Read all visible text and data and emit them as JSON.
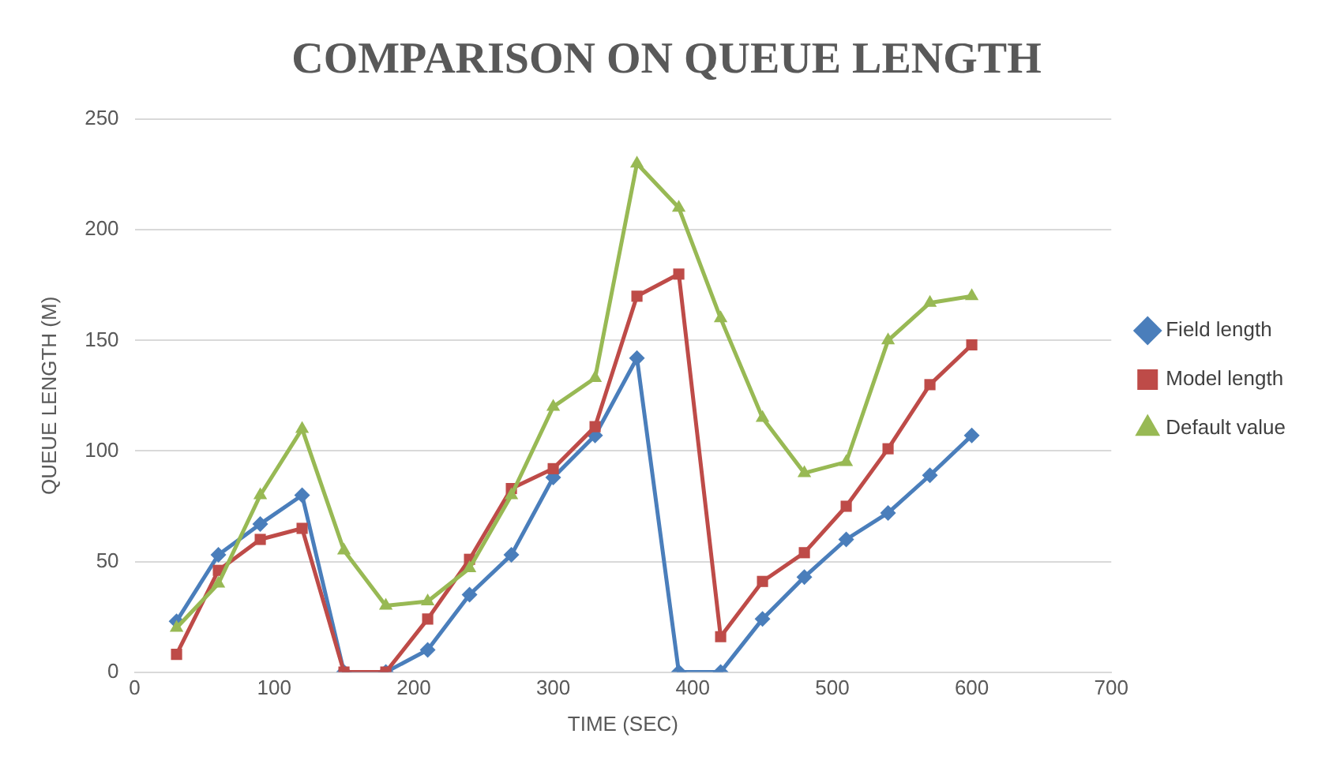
{
  "chart_data": {
    "type": "line",
    "title": "COMPARISON ON QUEUE LENGTH",
    "xlabel": "TIME (SEC)",
    "ylabel": "QUEUE LENGTH (M)",
    "x": [
      30,
      60,
      90,
      120,
      150,
      180,
      210,
      240,
      270,
      300,
      330,
      360,
      390,
      420,
      450,
      480,
      510,
      540,
      570,
      600
    ],
    "series": [
      {
        "name": "Field length",
        "color": "#4a7ebb",
        "marker": "diamond",
        "values": [
          23,
          53,
          67,
          80,
          0,
          0,
          10,
          35,
          53,
          88,
          107,
          142,
          0,
          0,
          24,
          43,
          60,
          72,
          89,
          107
        ]
      },
      {
        "name": "Model length",
        "color": "#be4b48",
        "marker": "square",
        "values": [
          8,
          46,
          60,
          65,
          0,
          0,
          24,
          51,
          83,
          92,
          111,
          170,
          180,
          16,
          41,
          54,
          75,
          101,
          130,
          148
        ]
      },
      {
        "name": "Default value",
        "color": "#98b954",
        "marker": "triangle",
        "values": [
          20,
          40,
          80,
          110,
          55,
          30,
          32,
          47,
          80,
          120,
          133,
          230,
          210,
          160,
          115,
          90,
          95,
          150,
          167,
          170
        ]
      }
    ],
    "xlim": [
      0,
      700
    ],
    "xticks": [
      0,
      100,
      200,
      300,
      400,
      500,
      600,
      700
    ],
    "ylim": [
      0,
      250
    ],
    "yticks": [
      0,
      50,
      100,
      150,
      200,
      250
    ],
    "grid": "y",
    "legend": "right",
    "line_style": "solid"
  }
}
